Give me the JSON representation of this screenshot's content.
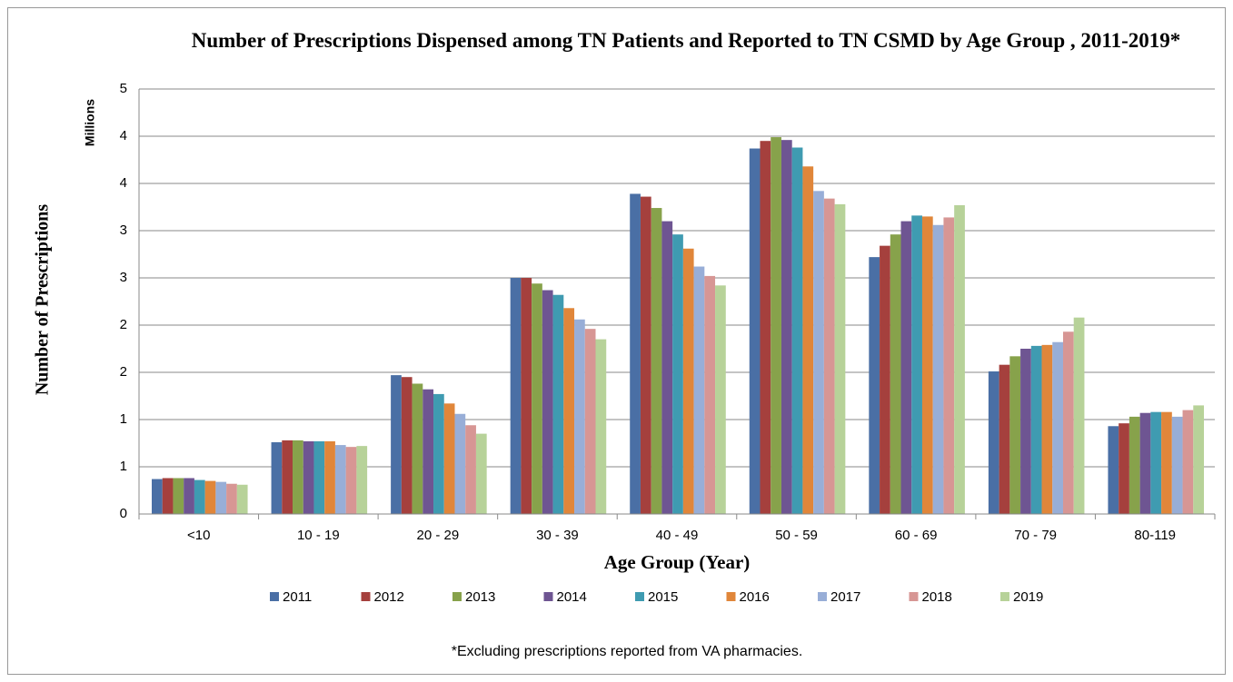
{
  "chart_data": {
    "type": "bar",
    "title": "Number of Prescriptions Dispensed among TN Patients and Reported to TN CSMD by Age Group , 2011-2019*",
    "y_unit_label": "Millions",
    "ylabel": "Number of Prescriptions",
    "xlabel": "Age Group (Year)",
    "footnote": "*Excluding prescriptions reported from VA pharmacies.",
    "categories": [
      "<10",
      "10 - 19",
      "20 - 29",
      "30 - 39",
      "40 - 49",
      "50 - 59",
      "60 - 69",
      "70 - 79",
      "80-119"
    ],
    "series": [
      {
        "name": "2011",
        "color": "#4a6fa5",
        "values": [
          0.37,
          0.76,
          1.47,
          2.5,
          3.39,
          3.87,
          2.72,
          1.51,
          0.93
        ]
      },
      {
        "name": "2012",
        "color": "#a5403d",
        "values": [
          0.38,
          0.78,
          1.45,
          2.5,
          3.36,
          3.95,
          2.84,
          1.58,
          0.96
        ]
      },
      {
        "name": "2013",
        "color": "#87a24b",
        "values": [
          0.38,
          0.78,
          1.38,
          2.44,
          3.24,
          3.99,
          2.96,
          1.67,
          1.03
        ]
      },
      {
        "name": "2014",
        "color": "#6e5592",
        "values": [
          0.38,
          0.77,
          1.32,
          2.37,
          3.1,
          3.96,
          3.1,
          1.75,
          1.07
        ]
      },
      {
        "name": "2015",
        "color": "#3f9bb1",
        "values": [
          0.36,
          0.77,
          1.27,
          2.32,
          2.96,
          3.88,
          3.16,
          1.78,
          1.08
        ]
      },
      {
        "name": "2016",
        "color": "#e0863a",
        "values": [
          0.35,
          0.77,
          1.17,
          2.18,
          2.81,
          3.68,
          3.15,
          1.79,
          1.08
        ]
      },
      {
        "name": "2017",
        "color": "#98aed7",
        "values": [
          0.34,
          0.73,
          1.06,
          2.06,
          2.62,
          3.42,
          3.06,
          1.82,
          1.03
        ]
      },
      {
        "name": "2018",
        "color": "#d79694",
        "values": [
          0.32,
          0.71,
          0.94,
          1.96,
          2.52,
          3.34,
          3.14,
          1.93,
          1.1
        ]
      },
      {
        "name": "2019",
        "color": "#b7d299",
        "values": [
          0.31,
          0.72,
          0.85,
          1.85,
          2.42,
          3.28,
          3.27,
          2.08,
          1.15
        ]
      }
    ],
    "ylim": [
      0,
      4.5
    ],
    "yticks": [
      0,
      {
        "value": 0.5,
        "label": "1"
      },
      1,
      {
        "value": 1.5,
        "label": "2"
      },
      2,
      {
        "value": 2.5,
        "label": "3"
      },
      3,
      {
        "value": 3.5,
        "label": "4"
      },
      4,
      {
        "value": 4.5,
        "label": "5"
      }
    ],
    "grid": true,
    "legend": "bottom"
  }
}
